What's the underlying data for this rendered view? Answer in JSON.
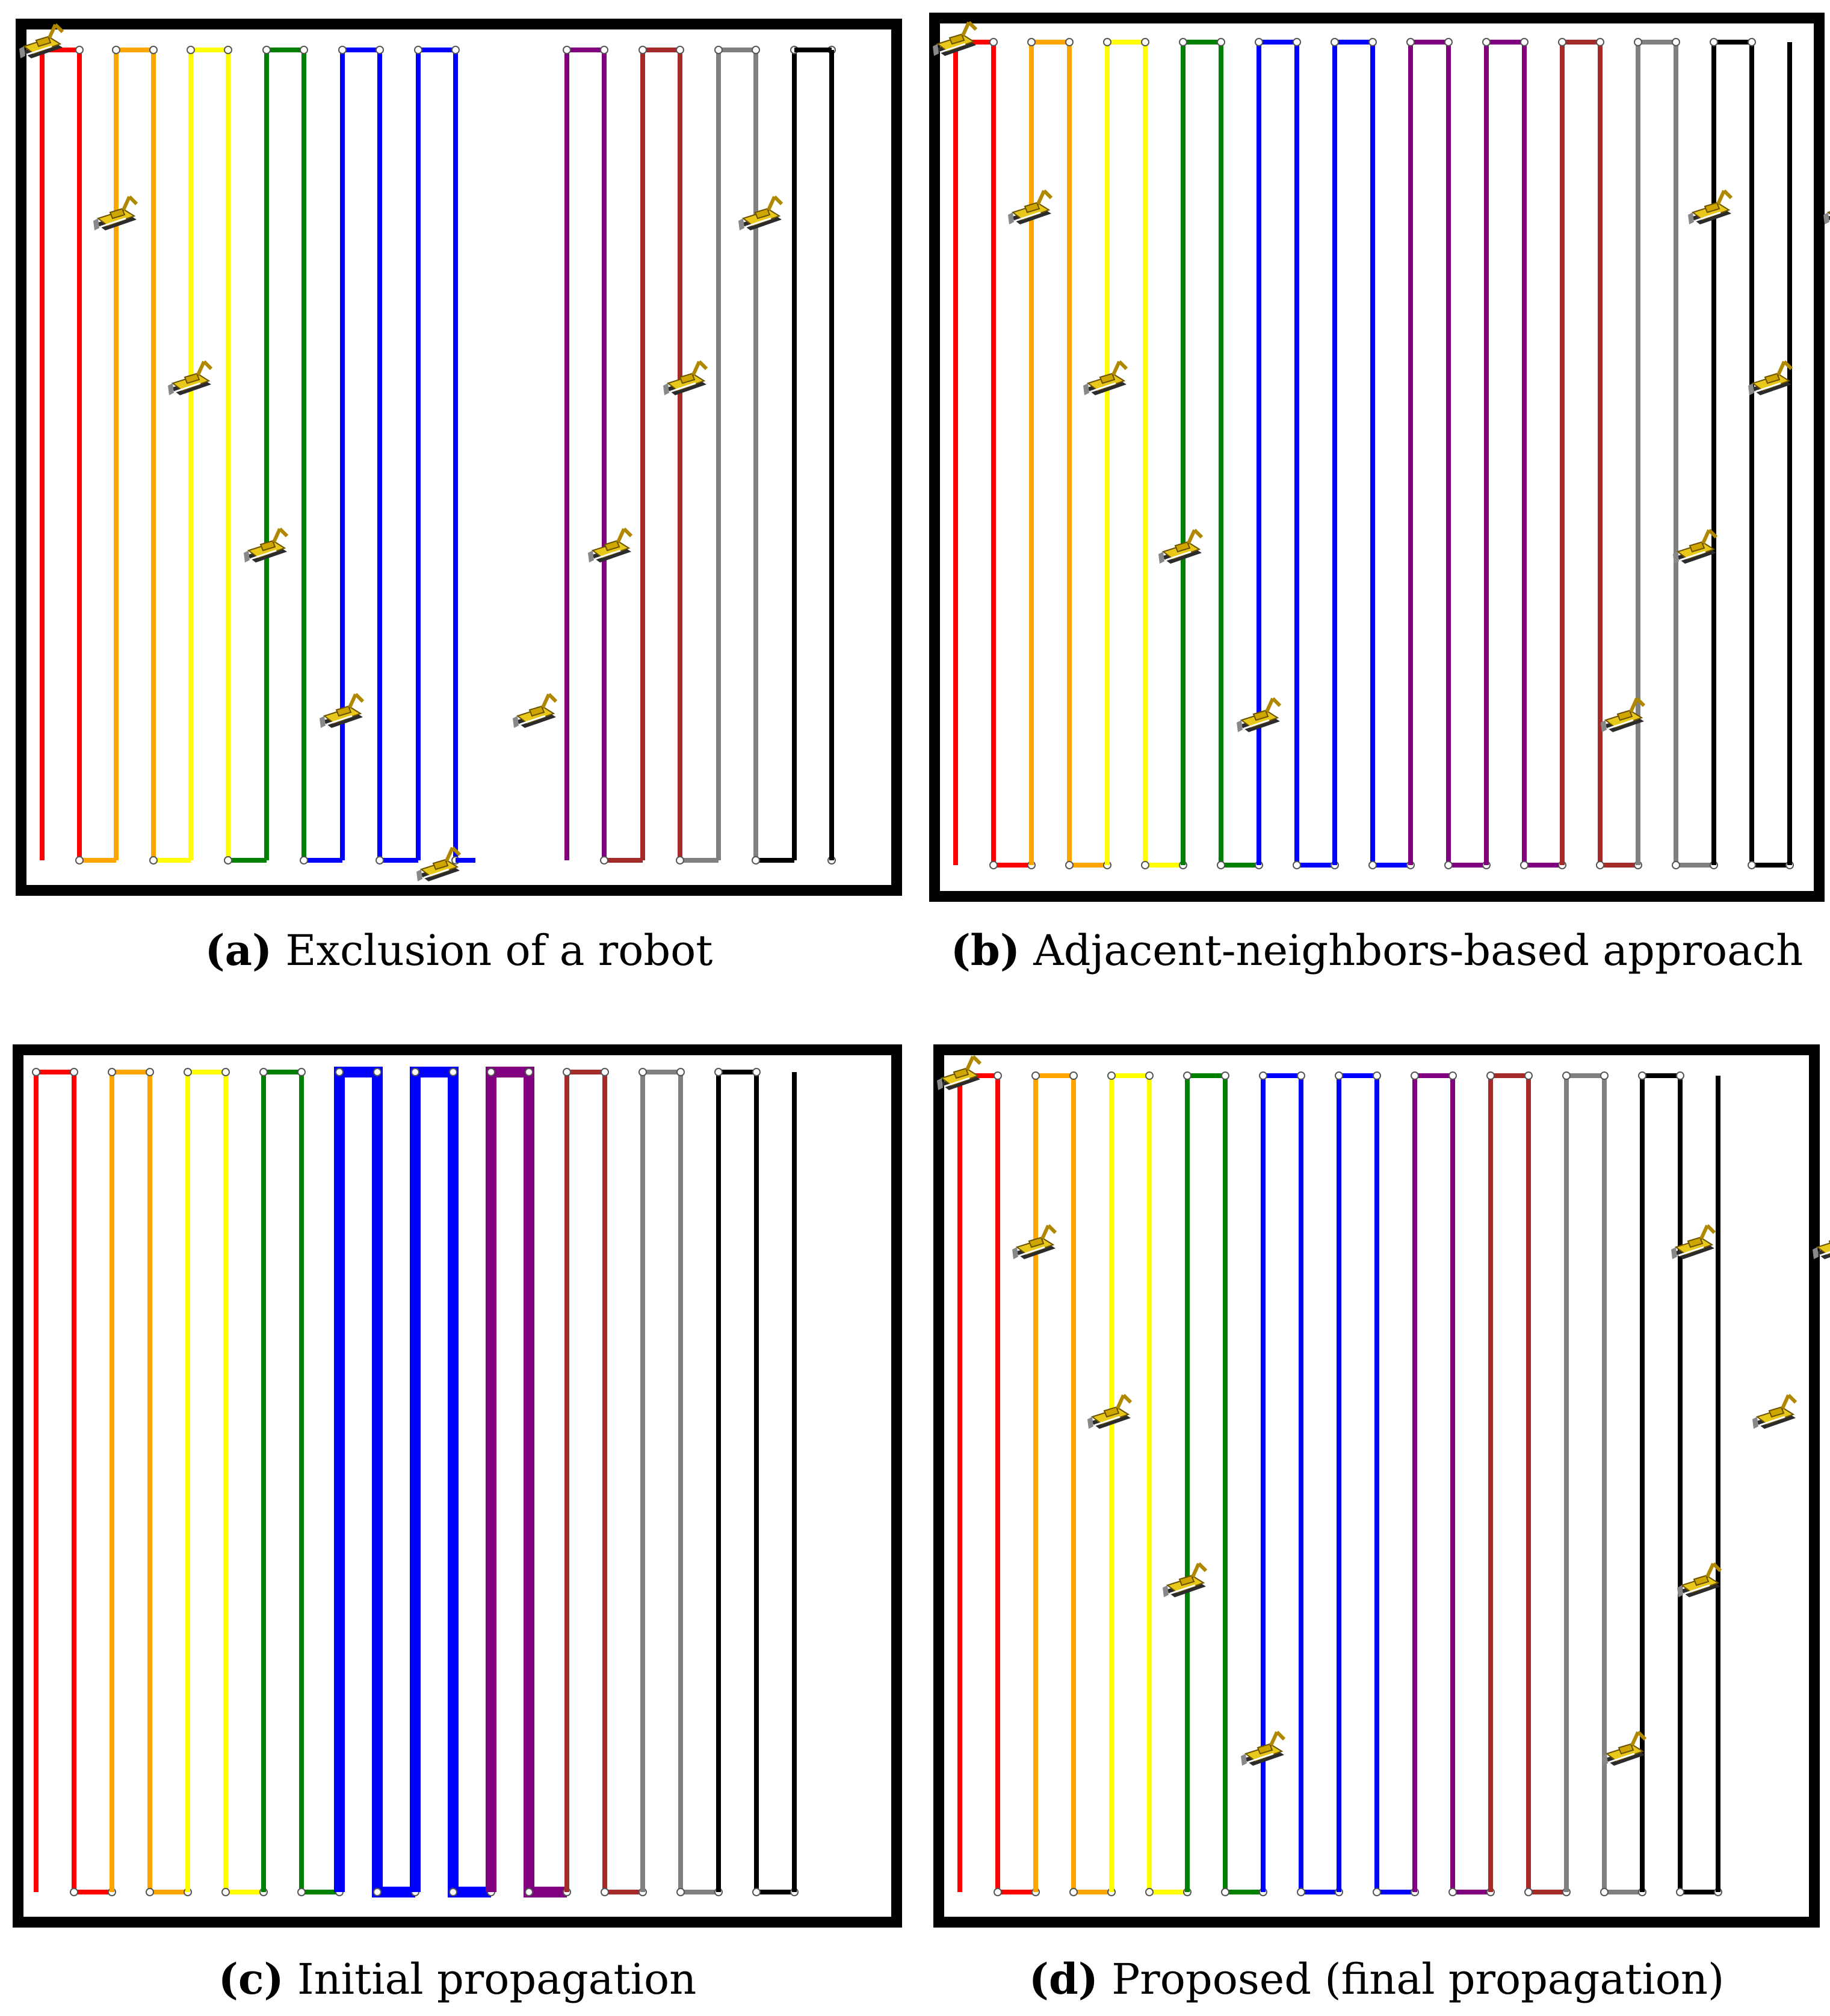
{
  "figure": {
    "panels": [
      {
        "id": "a",
        "letter": "(a)",
        "caption": "Exclusion of a robot"
      },
      {
        "id": "b",
        "letter": "(b)",
        "caption": "Adjacent-neighbors-based approach"
      },
      {
        "id": "c",
        "letter": "(c)",
        "caption": "Initial propagation"
      },
      {
        "id": "d",
        "letter": "(d)",
        "caption": "Proposed (final propagation)"
      }
    ],
    "lane_colors": [
      "#ff0000",
      "#ffa500",
      "#ffff00",
      "#008000",
      "#0000ff",
      "#0000ff",
      "#800080",
      "#a52a2a",
      "#808080",
      "#000000"
    ],
    "icons": {
      "robot": "robot-bulldozer-icon",
      "waypoint": "waypoint-dot-icon"
    }
  }
}
